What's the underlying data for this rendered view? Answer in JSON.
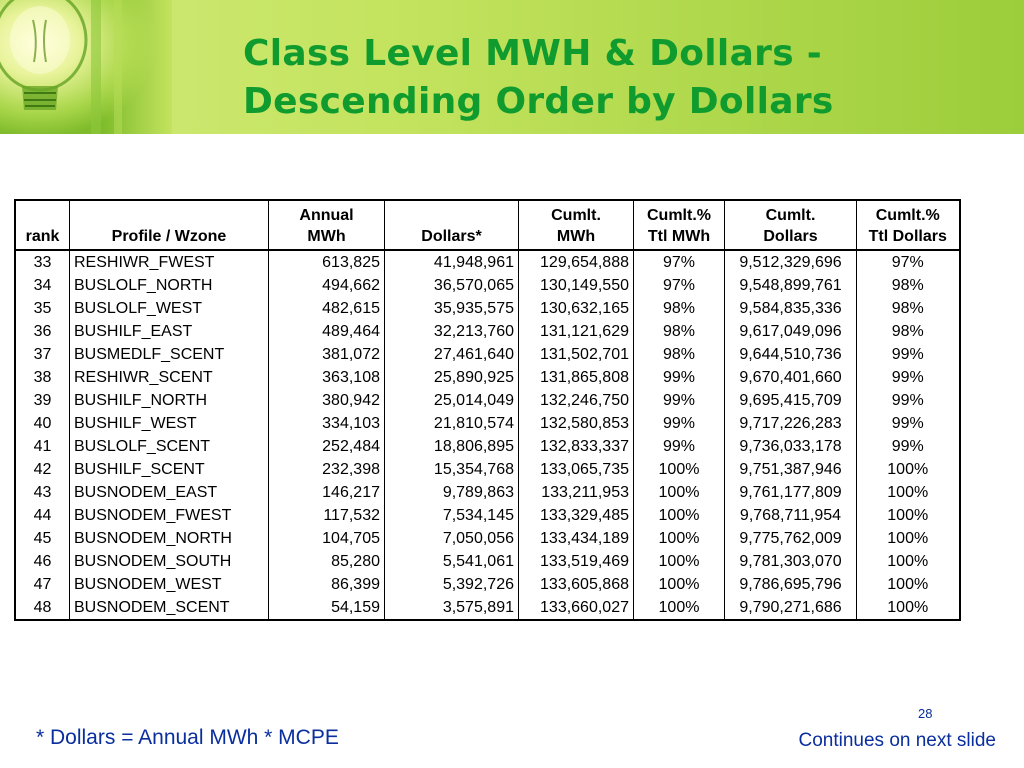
{
  "title": {
    "line1": "Class Level MWH & Dollars -",
    "line2": "Descending Order by Dollars"
  },
  "table": {
    "headers": {
      "rank": [
        "",
        "rank"
      ],
      "profile": [
        "",
        "Profile / Wzone"
      ],
      "mwh": [
        "Annual",
        "MWh"
      ],
      "dollars": [
        "",
        "Dollars*"
      ],
      "cuml_mwh": [
        "Cumlt.",
        "MWh"
      ],
      "pct_mwh": [
        "Cumlt.%",
        "Ttl MWh"
      ],
      "cuml_dollars": [
        "Cumlt.",
        "Dollars"
      ],
      "pct_dollars": [
        "Cumlt.%",
        "Ttl Dollars"
      ]
    },
    "rows": [
      {
        "rank": "33",
        "profile": "RESHIWR_FWEST",
        "mwh": "613,825",
        "dollars": "41,948,961",
        "cuml_mwh": "129,654,888",
        "pct_mwh": "97%",
        "cuml_dollars": "9,512,329,696",
        "pct_dollars": "97%"
      },
      {
        "rank": "34",
        "profile": "BUSLOLF_NORTH",
        "mwh": "494,662",
        "dollars": "36,570,065",
        "cuml_mwh": "130,149,550",
        "pct_mwh": "97%",
        "cuml_dollars": "9,548,899,761",
        "pct_dollars": "98%"
      },
      {
        "rank": "35",
        "profile": "BUSLOLF_WEST",
        "mwh": "482,615",
        "dollars": "35,935,575",
        "cuml_mwh": "130,632,165",
        "pct_mwh": "98%",
        "cuml_dollars": "9,584,835,336",
        "pct_dollars": "98%"
      },
      {
        "rank": "36",
        "profile": "BUSHILF_EAST",
        "mwh": "489,464",
        "dollars": "32,213,760",
        "cuml_mwh": "131,121,629",
        "pct_mwh": "98%",
        "cuml_dollars": "9,617,049,096",
        "pct_dollars": "98%"
      },
      {
        "rank": "37",
        "profile": "BUSMEDLF_SCENT",
        "mwh": "381,072",
        "dollars": "27,461,640",
        "cuml_mwh": "131,502,701",
        "pct_mwh": "98%",
        "cuml_dollars": "9,644,510,736",
        "pct_dollars": "99%"
      },
      {
        "rank": "38",
        "profile": "RESHIWR_SCENT",
        "mwh": "363,108",
        "dollars": "25,890,925",
        "cuml_mwh": "131,865,808",
        "pct_mwh": "99%",
        "cuml_dollars": "9,670,401,660",
        "pct_dollars": "99%"
      },
      {
        "rank": "39",
        "profile": "BUSHILF_NORTH",
        "mwh": "380,942",
        "dollars": "25,014,049",
        "cuml_mwh": "132,246,750",
        "pct_mwh": "99%",
        "cuml_dollars": "9,695,415,709",
        "pct_dollars": "99%"
      },
      {
        "rank": "40",
        "profile": "BUSHILF_WEST",
        "mwh": "334,103",
        "dollars": "21,810,574",
        "cuml_mwh": "132,580,853",
        "pct_mwh": "99%",
        "cuml_dollars": "9,717,226,283",
        "pct_dollars": "99%"
      },
      {
        "rank": "41",
        "profile": "BUSLOLF_SCENT",
        "mwh": "252,484",
        "dollars": "18,806,895",
        "cuml_mwh": "132,833,337",
        "pct_mwh": "99%",
        "cuml_dollars": "9,736,033,178",
        "pct_dollars": "99%"
      },
      {
        "rank": "42",
        "profile": "BUSHILF_SCENT",
        "mwh": "232,398",
        "dollars": "15,354,768",
        "cuml_mwh": "133,065,735",
        "pct_mwh": "100%",
        "cuml_dollars": "9,751,387,946",
        "pct_dollars": "100%"
      },
      {
        "rank": "43",
        "profile": "BUSNODEM_EAST",
        "mwh": "146,217",
        "dollars": "9,789,863",
        "cuml_mwh": "133,211,953",
        "pct_mwh": "100%",
        "cuml_dollars": "9,761,177,809",
        "pct_dollars": "100%"
      },
      {
        "rank": "44",
        "profile": "BUSNODEM_FWEST",
        "mwh": "117,532",
        "dollars": "7,534,145",
        "cuml_mwh": "133,329,485",
        "pct_mwh": "100%",
        "cuml_dollars": "9,768,711,954",
        "pct_dollars": "100%"
      },
      {
        "rank": "45",
        "profile": "BUSNODEM_NORTH",
        "mwh": "104,705",
        "dollars": "7,050,056",
        "cuml_mwh": "133,434,189",
        "pct_mwh": "100%",
        "cuml_dollars": "9,775,762,009",
        "pct_dollars": "100%"
      },
      {
        "rank": "46",
        "profile": "BUSNODEM_SOUTH",
        "mwh": "85,280",
        "dollars": "5,541,061",
        "cuml_mwh": "133,519,469",
        "pct_mwh": "100%",
        "cuml_dollars": "9,781,303,070",
        "pct_dollars": "100%"
      },
      {
        "rank": "47",
        "profile": "BUSNODEM_WEST",
        "mwh": "86,399",
        "dollars": "5,392,726",
        "cuml_mwh": "133,605,868",
        "pct_mwh": "100%",
        "cuml_dollars": "9,786,695,796",
        "pct_dollars": "100%"
      },
      {
        "rank": "48",
        "profile": "BUSNODEM_SCENT",
        "mwh": "54,159",
        "dollars": "3,575,891",
        "cuml_mwh": "133,660,027",
        "pct_mwh": "100%",
        "cuml_dollars": "9,790,271,686",
        "pct_dollars": "100%"
      }
    ]
  },
  "footnote": "* Dollars = Annual MWh * MCPE",
  "continues": "Continues on next slide",
  "page_number": "28",
  "colors": {
    "title": "#109b2e",
    "footer_text": "#0a2e9e",
    "header_band": "#c3e35e"
  },
  "icons": {
    "header_image": "light-bulb-icon"
  }
}
